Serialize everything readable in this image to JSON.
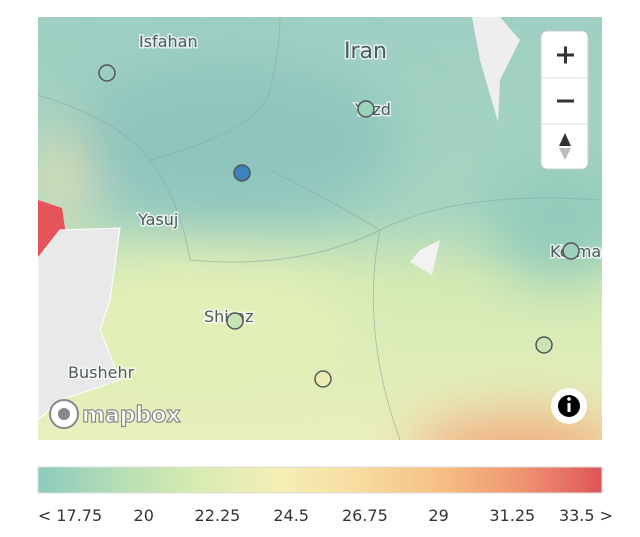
{
  "map": {
    "labels": [
      "Isfahan",
      "Iran",
      "Yazd",
      "Yasuj",
      "Kerman",
      "Shiraz",
      "Bushehr"
    ],
    "attribution": "mapbox",
    "stations": [
      null,
      16.5,
      18.6,
      18.6,
      21,
      21.2,
      23.6
    ]
  },
  "legend": {
    "min": 17.75,
    "max": 33.5,
    "colors": [
      "#8ccabf",
      "#b5deb4",
      "#d9ebb2",
      "#f3efb5",
      "#f8dba0",
      "#f6bf84",
      "#ee9472",
      "#e0545a"
    ],
    "ticks": [
      {
        "value": 17.75,
        "label": "< 17.75"
      },
      20,
      22.25,
      24.5,
      26.75,
      29,
      31.25,
      {
        "value": 33.5,
        "label": "33.5 >"
      }
    ]
  }
}
